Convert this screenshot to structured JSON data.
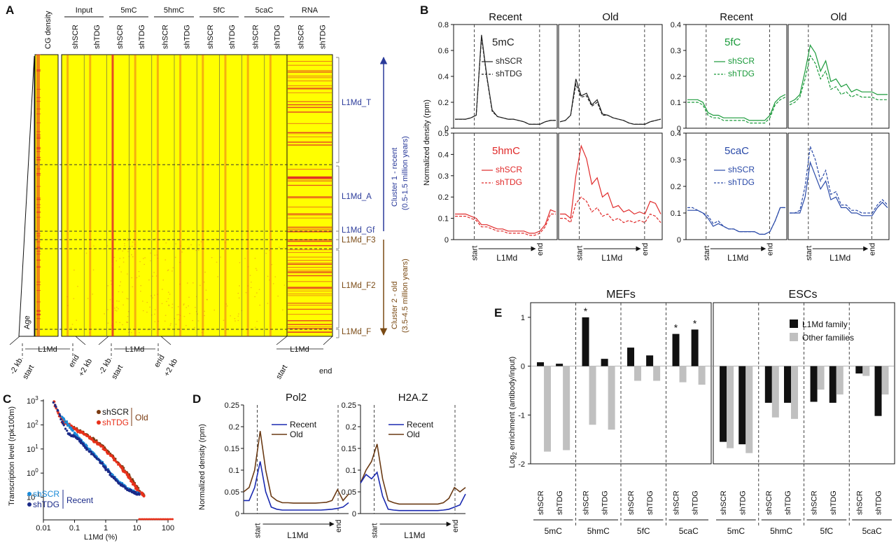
{
  "panels": {
    "A": {
      "letter": "A",
      "cg_label": "CG density",
      "groups": [
        "Input",
        "5mC",
        "5hmC",
        "5fC",
        "5caC",
        "RNA"
      ],
      "samples": [
        "shSCR",
        "shTDG"
      ],
      "clusters": [
        "L1Md_T",
        "L1Md_A",
        "L1Md_Gf",
        "L1Md_F3",
        "L1Md_F2",
        "L1Md_F"
      ],
      "cluster1": [
        "Cluster 1 - recent",
        "(0.5-1.5 million years)"
      ],
      "cluster2": [
        "Cluster 2 - old",
        "(3.5-4.5 million years)"
      ],
      "age_label": "Age",
      "bottom": {
        "l1md": "L1Md",
        "minus2": "-2 kb",
        "start": "start",
        "end": "end",
        "plus2": "+2 kb"
      },
      "colors": {
        "bg": "#ffff00",
        "signal": "#e0202a",
        "recent_arrow": "#2a3a9a",
        "old_arrow": "#7a4a14"
      }
    },
    "B": {
      "letter": "B",
      "col_titles": [
        "Recent",
        "Old",
        "Recent",
        "Old"
      ],
      "ylabel": "Normalized density (rpm)",
      "xlabels": {
        "start": "start",
        "end": "end",
        "l1md": "L1Md"
      },
      "subplots": [
        {
          "mark": "5mC",
          "color": "#222222",
          "legend": [
            "shSCR",
            "shTDG"
          ],
          "ylim": [
            0,
            0.8
          ],
          "ticks": [
            "0",
            "0.2",
            "0.4",
            "0.6",
            "0.8"
          ],
          "recent": {
            "a": [
              0.07,
              0.07,
              0.07,
              0.08,
              0.1,
              0.72,
              0.4,
              0.14,
              0.09,
              0.08,
              0.07,
              0.07,
              0.06,
              0.05,
              0.03,
              0.03,
              0.03,
              0.05,
              0.06,
              0.06
            ],
            "b": [
              0.07,
              0.07,
              0.07,
              0.08,
              0.1,
              0.7,
              0.39,
              0.13,
              0.09,
              0.08,
              0.07,
              0.07,
              0.06,
              0.05,
              0.03,
              0.03,
              0.03,
              0.05,
              0.06,
              0.06
            ]
          },
          "old": {
            "a": [
              0.05,
              0.06,
              0.1,
              0.38,
              0.25,
              0.27,
              0.18,
              0.22,
              0.11,
              0.1,
              0.08,
              0.07,
              0.06,
              0.04,
              0.03,
              0.03,
              0.03,
              0.05,
              0.06,
              0.07
            ],
            "b": [
              0.05,
              0.06,
              0.1,
              0.34,
              0.24,
              0.25,
              0.17,
              0.2,
              0.1,
              0.1,
              0.08,
              0.07,
              0.06,
              0.04,
              0.03,
              0.03,
              0.03,
              0.05,
              0.06,
              0.07
            ]
          }
        },
        {
          "mark": "5fC",
          "color": "#1a9a3a",
          "legend": [
            "shSCR",
            "shTDG"
          ],
          "ylim": [
            0,
            0.4
          ],
          "ticks": [
            "0",
            "0.1",
            "0.2",
            "0.3",
            "0.4"
          ],
          "recent": {
            "a": [
              0.11,
              0.11,
              0.11,
              0.1,
              0.06,
              0.05,
              0.05,
              0.04,
              0.04,
              0.04,
              0.04,
              0.04,
              0.03,
              0.03,
              0.03,
              0.03,
              0.05,
              0.1,
              0.12,
              0.13
            ],
            "b": [
              0.1,
              0.1,
              0.1,
              0.09,
              0.05,
              0.04,
              0.04,
              0.03,
              0.03,
              0.03,
              0.03,
              0.03,
              0.02,
              0.02,
              0.02,
              0.02,
              0.04,
              0.09,
              0.11,
              0.12
            ]
          },
          "old": {
            "a": [
              0.1,
              0.11,
              0.13,
              0.22,
              0.32,
              0.29,
              0.22,
              0.26,
              0.18,
              0.19,
              0.16,
              0.17,
              0.14,
              0.15,
              0.14,
              0.14,
              0.14,
              0.13,
              0.13,
              0.13
            ],
            "b": [
              0.09,
              0.1,
              0.12,
              0.19,
              0.28,
              0.25,
              0.19,
              0.22,
              0.15,
              0.16,
              0.13,
              0.14,
              0.12,
              0.13,
              0.12,
              0.12,
              0.12,
              0.11,
              0.11,
              0.11
            ]
          }
        },
        {
          "mark": "5hmC",
          "color": "#e02a2a",
          "legend": [
            "shSCR",
            "shTDG"
          ],
          "ylim": [
            0,
            0.5
          ],
          "ticks": [
            "0",
            "0.1",
            "0.2",
            "0.3",
            "0.4",
            "0.5"
          ],
          "recent": {
            "a": [
              0.12,
              0.12,
              0.12,
              0.11,
              0.1,
              0.07,
              0.07,
              0.06,
              0.05,
              0.05,
              0.04,
              0.04,
              0.04,
              0.04,
              0.03,
              0.03,
              0.04,
              0.07,
              0.14,
              0.13
            ],
            "b": [
              0.11,
              0.11,
              0.11,
              0.1,
              0.09,
              0.06,
              0.06,
              0.05,
              0.04,
              0.04,
              0.03,
              0.03,
              0.03,
              0.03,
              0.02,
              0.02,
              0.03,
              0.06,
              0.12,
              0.12
            ]
          },
          "old": {
            "a": [
              0.12,
              0.12,
              0.1,
              0.3,
              0.44,
              0.38,
              0.26,
              0.29,
              0.2,
              0.22,
              0.15,
              0.16,
              0.13,
              0.14,
              0.12,
              0.13,
              0.12,
              0.18,
              0.17,
              0.12
            ],
            "b": [
              0.1,
              0.1,
              0.08,
              0.17,
              0.2,
              0.18,
              0.13,
              0.15,
              0.11,
              0.12,
              0.09,
              0.1,
              0.08,
              0.09,
              0.08,
              0.09,
              0.08,
              0.12,
              0.11,
              0.08
            ]
          }
        },
        {
          "mark": "5caC",
          "color": "#2a4aa8",
          "legend": [
            "shSCR",
            "shTDG"
          ],
          "ylim": [
            0,
            0.4
          ],
          "ticks": [
            "0",
            "0.1",
            "0.2",
            "0.3",
            "0.4"
          ],
          "recent": {
            "a": [
              0.11,
              0.11,
              0.11,
              0.1,
              0.08,
              0.05,
              0.06,
              0.05,
              0.04,
              0.04,
              0.03,
              0.03,
              0.03,
              0.03,
              0.02,
              0.02,
              0.03,
              0.07,
              0.12,
              0.12
            ],
            "b": [
              0.12,
              0.12,
              0.11,
              0.1,
              0.09,
              0.06,
              0.07,
              0.05,
              0.04,
              0.04,
              0.03,
              0.03,
              0.03,
              0.03,
              0.02,
              0.02,
              0.03,
              0.07,
              0.12,
              0.12
            ]
          },
          "old": {
            "a": [
              0.1,
              0.1,
              0.1,
              0.16,
              0.29,
              0.24,
              0.19,
              0.22,
              0.15,
              0.16,
              0.12,
              0.12,
              0.1,
              0.1,
              0.09,
              0.09,
              0.09,
              0.12,
              0.14,
              0.12
            ],
            "b": [
              0.1,
              0.1,
              0.11,
              0.2,
              0.35,
              0.3,
              0.22,
              0.26,
              0.17,
              0.18,
              0.13,
              0.13,
              0.11,
              0.11,
              0.1,
              0.1,
              0.1,
              0.13,
              0.15,
              0.13
            ]
          }
        }
      ]
    },
    "C": {
      "letter": "C",
      "ylabel": "Transcription level (rpk100m)",
      "xlabel": "L1Md (%)",
      "yticks": [
        "10^3",
        "10^2",
        "10^1",
        "10^0",
        "10^-1"
      ],
      "xticks": [
        "0.01",
        "0.1",
        "1",
        "10",
        "100"
      ],
      "legend_old": [
        "shSCR",
        "shTDG",
        "Old"
      ],
      "legend_recent": [
        "shSCR",
        "shTDG",
        "Recent"
      ],
      "series": [
        {
          "name": "shSCR Old",
          "color": "#7a3a10",
          "x": [
            0.05,
            0.08,
            0.12,
            0.2,
            0.4,
            0.8,
            1.5,
            3,
            5,
            8,
            12,
            18
          ],
          "y": [
            110,
            75,
            55,
            40,
            22,
            12,
            5,
            1.8,
            0.8,
            0.35,
            0.15,
            0.1
          ]
        },
        {
          "name": "shTDG Old",
          "color": "#e8301a",
          "x": [
            0.02,
            0.04,
            0.08,
            0.12,
            0.2,
            0.4,
            0.8,
            1.5,
            3,
            5,
            8,
            12,
            18
          ],
          "y": [
            1000,
            120,
            80,
            50,
            38,
            20,
            10,
            4.5,
            1.6,
            0.7,
            0.3,
            0.14,
            0.1
          ]
        },
        {
          "name": "shSCR Recent",
          "color": "#1a8ad8",
          "x": [
            0.04,
            0.08,
            0.12,
            0.2,
            0.4,
            0.8,
            1.5,
            3,
            5,
            8,
            12
          ],
          "y": [
            180,
            60,
            30,
            15,
            6,
            2.2,
            0.8,
            0.35,
            0.2,
            0.15,
            0.12
          ]
        },
        {
          "name": "shTDG Recent",
          "color": "#1a2a88",
          "x": [
            0.02,
            0.06,
            0.12,
            0.2,
            0.4,
            0.8,
            1.5,
            3,
            5,
            8,
            12
          ],
          "y": [
            1000,
            40,
            25,
            12,
            5,
            2,
            0.7,
            0.3,
            0.18,
            0.14,
            0.11
          ]
        }
      ]
    },
    "D": {
      "letter": "D",
      "ylabel": "Normalized density (rpm)",
      "ticks": [
        "0",
        "0.05",
        "0.1",
        "0.15",
        "0.2",
        "0.25"
      ],
      "ylim": [
        0,
        0.25
      ],
      "legend": [
        "Recent",
        "Old"
      ],
      "colors": {
        "recent": "#1a2ab0",
        "old": "#6a3a14"
      },
      "xlabels": {
        "start": "start",
        "end": "end",
        "l1md": "L1Md"
      },
      "plots": [
        {
          "title": "Pol2",
          "recent": [
            0.03,
            0.03,
            0.06,
            0.12,
            0.05,
            0.015,
            0.01,
            0.008,
            0.008,
            0.008,
            0.008,
            0.008,
            0.008,
            0.008,
            0.008,
            0.009,
            0.01,
            0.012,
            0.015,
            0.025
          ],
          "old": [
            0.05,
            0.06,
            0.1,
            0.19,
            0.1,
            0.04,
            0.03,
            0.025,
            0.025,
            0.024,
            0.024,
            0.024,
            0.024,
            0.024,
            0.025,
            0.026,
            0.03,
            0.055,
            0.03,
            0.045
          ]
        },
        {
          "title": "H2A.Z",
          "recent": [
            0.07,
            0.09,
            0.08,
            0.095,
            0.04,
            0.01,
            0.008,
            0.007,
            0.007,
            0.007,
            0.007,
            0.007,
            0.007,
            0.007,
            0.007,
            0.008,
            0.01,
            0.015,
            0.02,
            0.045
          ],
          "old": [
            0.07,
            0.1,
            0.12,
            0.16,
            0.08,
            0.03,
            0.025,
            0.022,
            0.022,
            0.022,
            0.022,
            0.022,
            0.022,
            0.022,
            0.022,
            0.025,
            0.035,
            0.06,
            0.05,
            0.06
          ]
        }
      ]
    },
    "E": {
      "letter": "E",
      "ylabel": "Log2 enrichment (antibody/input)",
      "ylabel_main": "Log",
      "ylabel_sub": "2",
      "ylabel_rest": " enrichment (antibody/input)",
      "sections": [
        "MEFs",
        "ESCs"
      ],
      "legend": [
        "L1Md family",
        "Other families"
      ],
      "colors": {
        "l1md": "#111111",
        "other": "#c0c0c0"
      },
      "yticks": [
        "1",
        "0",
        "-1",
        "-2"
      ],
      "ylim": [
        -2,
        1.3
      ],
      "star": "*"
    }
  },
  "chart_data": [
    {
      "type": "heatmap",
      "title": "",
      "columns": [
        "CG density",
        "Input shSCR",
        "Input shTDG",
        "5mC shSCR",
        "5mC shTDG",
        "5hmC shSCR",
        "5hmC shTDG",
        "5fC shSCR",
        "5fC shTDG",
        "5caC shSCR",
        "5caC shTDG",
        "RNA shSCR",
        "RNA shTDG"
      ],
      "row_clusters": [
        "L1Md_T",
        "L1Md_A",
        "L1Md_Gf",
        "L1Md_F3",
        "L1Md_F2",
        "L1Md_F"
      ]
    },
    {
      "type": "line",
      "title": "Normalized density (rpm)",
      "series": [
        {
          "name": "5mC shSCR Recent peak",
          "values": [
            0.72
          ]
        },
        {
          "name": "5mC shSCR Old peak",
          "values": [
            0.38
          ]
        },
        {
          "name": "5fC shSCR Old peak",
          "values": [
            0.32
          ]
        },
        {
          "name": "5hmC shSCR Old peak",
          "values": [
            0.44
          ]
        },
        {
          "name": "5caC shTDG Old peak",
          "values": [
            0.35
          ]
        }
      ]
    },
    {
      "type": "scatter",
      "xlabel": "L1Md (%)",
      "ylabel": "Transcription level (rpk100m)",
      "xlim": [
        0.01,
        100
      ],
      "ylim": [
        0.01,
        1000
      ]
    },
    {
      "type": "line",
      "title": "Pol2 / H2A.Z",
      "ylim": [
        0,
        0.25
      ],
      "series": [
        {
          "name": "Pol2 Recent peak",
          "values": [
            0.12
          ]
        },
        {
          "name": "Pol2 Old peak",
          "values": [
            0.19
          ]
        },
        {
          "name": "H2A.Z Recent peak",
          "values": [
            0.095
          ]
        },
        {
          "name": "H2A.Z Old peak",
          "values": [
            0.16
          ]
        }
      ]
    },
    {
      "type": "bar",
      "ylabel": "Log2 enrichment (antibody/input)",
      "ylim": [
        -2,
        1.3
      ],
      "categories": [
        "MEFs 5mC shSCR",
        "MEFs 5mC shTDG",
        "MEFs 5hmC shSCR",
        "MEFs 5hmC shTDG",
        "MEFs 5fC shSCR",
        "MEFs 5fC shTDG",
        "MEFs 5caC shSCR",
        "MEFs 5caC shTDG",
        "ESCs 5mC shSCR",
        "ESCs 5mC shTDG",
        "ESCs 5hmC shSCR",
        "ESCs 5hmC shTDG",
        "ESCs 5fC shSCR",
        "ESCs 5fC shTDG",
        "ESCs 5caC shSCR",
        "ESCs 5caC shTDG"
      ],
      "groups": [
        "5mC",
        "5hmC",
        "5fC",
        "5caC",
        "5mC",
        "5hmC",
        "5fC",
        "5caC"
      ],
      "samples": [
        "shSCR",
        "shTDG",
        "shSCR",
        "shTDG",
        "shSCR",
        "shTDG",
        "shSCR",
        "shTDG",
        "shSCR",
        "shTDG",
        "shSCR",
        "shTDG",
        "shSCR",
        "shTDG",
        "shSCR",
        "shTDG"
      ],
      "series": [
        {
          "name": "L1Md family",
          "values": [
            0.08,
            0.05,
            1.0,
            0.15,
            0.38,
            0.22,
            0.66,
            0.75,
            -1.55,
            -1.6,
            -0.75,
            -0.75,
            -0.73,
            -0.75,
            -0.15,
            -1.02
          ]
        },
        {
          "name": "Other families",
          "values": [
            -1.75,
            -1.72,
            -1.2,
            -1.3,
            -0.3,
            -0.3,
            -0.33,
            -0.38,
            -1.68,
            -1.78,
            -1.05,
            -1.08,
            -0.48,
            -0.58,
            -0.2,
            -0.58
          ]
        }
      ],
      "significant": [
        false,
        false,
        true,
        false,
        false,
        false,
        true,
        true,
        false,
        false,
        false,
        false,
        false,
        false,
        false,
        false
      ]
    }
  ]
}
